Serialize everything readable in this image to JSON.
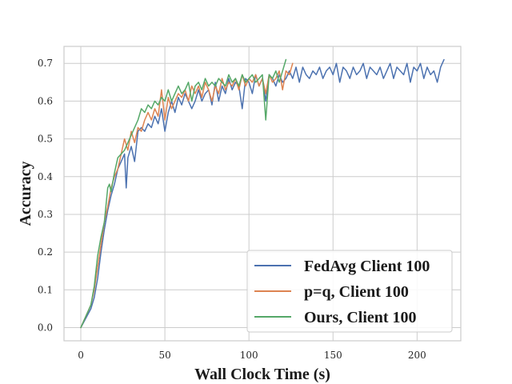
{
  "chart_data": {
    "type": "line",
    "title": "",
    "xlabel": "Wall Clock Time (s)",
    "ylabel": "Accuracy",
    "xlim": [
      -10,
      226
    ],
    "ylim": [
      -0.035,
      0.745
    ],
    "xticks": [
      0,
      50,
      100,
      150,
      200
    ],
    "yticks": [
      0.0,
      0.1,
      0.2,
      0.3,
      0.4,
      0.5,
      0.6,
      0.7
    ],
    "xtick_labels": [
      "0",
      "50",
      "100",
      "150",
      "200"
    ],
    "ytick_labels": [
      "0.0",
      "0.1",
      "0.2",
      "0.3",
      "0.4",
      "0.5",
      "0.6",
      "0.7"
    ],
    "grid": true,
    "legend_position": "lower-right",
    "series": [
      {
        "name": "FedAvg Client 100",
        "color": "#4c72b0",
        "x": [
          0,
          6,
          8,
          10,
          12,
          14,
          16,
          18,
          20,
          22,
          24,
          26,
          27,
          28,
          30,
          32,
          34,
          36,
          38,
          40,
          42,
          44,
          46,
          48,
          50,
          52,
          54,
          56,
          58,
          60,
          62,
          64,
          66,
          68,
          70,
          72,
          74,
          76,
          78,
          80,
          82,
          84,
          86,
          88,
          90,
          92,
          94,
          96,
          98,
          100,
          102,
          104,
          106,
          108,
          110,
          112,
          114,
          116,
          118,
          120,
          122,
          124,
          126,
          128,
          130,
          132,
          134,
          136,
          138,
          140,
          142,
          144,
          146,
          148,
          150,
          152,
          154,
          156,
          158,
          160,
          162,
          164,
          166,
          168,
          170,
          172,
          174,
          176,
          178,
          180,
          182,
          184,
          186,
          188,
          190,
          192,
          194,
          196,
          198,
          200,
          202,
          204,
          206,
          208,
          210,
          212,
          214,
          216
        ],
        "y": [
          0.0,
          0.05,
          0.08,
          0.13,
          0.2,
          0.26,
          0.31,
          0.35,
          0.38,
          0.42,
          0.44,
          0.46,
          0.37,
          0.45,
          0.48,
          0.44,
          0.52,
          0.53,
          0.52,
          0.54,
          0.53,
          0.56,
          0.54,
          0.58,
          0.52,
          0.57,
          0.6,
          0.57,
          0.61,
          0.59,
          0.62,
          0.6,
          0.58,
          0.6,
          0.63,
          0.6,
          0.62,
          0.63,
          0.59,
          0.65,
          0.6,
          0.64,
          0.62,
          0.66,
          0.63,
          0.65,
          0.64,
          0.58,
          0.66,
          0.65,
          0.62,
          0.67,
          0.64,
          0.66,
          0.6,
          0.67,
          0.66,
          0.64,
          0.67,
          0.65,
          0.66,
          0.68,
          0.66,
          0.69,
          0.65,
          0.69,
          0.67,
          0.66,
          0.68,
          0.67,
          0.69,
          0.66,
          0.68,
          0.69,
          0.67,
          0.7,
          0.65,
          0.69,
          0.68,
          0.66,
          0.69,
          0.67,
          0.68,
          0.7,
          0.66,
          0.69,
          0.68,
          0.67,
          0.69,
          0.66,
          0.68,
          0.7,
          0.66,
          0.69,
          0.68,
          0.67,
          0.7,
          0.65,
          0.69,
          0.68,
          0.7,
          0.66,
          0.69,
          0.67,
          0.68,
          0.65,
          0.69,
          0.71
        ]
      },
      {
        "name": "p=q, Client 100",
        "color": "#dd8452",
        "x": [
          0,
          6,
          8,
          10,
          12,
          14,
          16,
          18,
          20,
          22,
          24,
          26,
          28,
          30,
          32,
          34,
          36,
          38,
          40,
          42,
          44,
          46,
          48,
          50,
          52,
          54,
          56,
          58,
          60,
          62,
          64,
          66,
          68,
          70,
          72,
          74,
          76,
          78,
          80,
          82,
          84,
          86,
          88,
          90,
          92,
          94,
          96,
          98,
          100,
          102,
          104,
          106,
          108,
          110,
          112,
          114,
          116,
          118,
          120,
          122,
          124,
          126
        ],
        "y": [
          0.0,
          0.06,
          0.1,
          0.16,
          0.22,
          0.28,
          0.32,
          0.37,
          0.4,
          0.42,
          0.46,
          0.5,
          0.47,
          0.52,
          0.49,
          0.53,
          0.52,
          0.55,
          0.57,
          0.55,
          0.58,
          0.56,
          0.63,
          0.55,
          0.61,
          0.58,
          0.6,
          0.62,
          0.61,
          0.63,
          0.6,
          0.64,
          0.62,
          0.64,
          0.61,
          0.65,
          0.63,
          0.6,
          0.64,
          0.62,
          0.66,
          0.63,
          0.65,
          0.64,
          0.66,
          0.63,
          0.67,
          0.64,
          0.66,
          0.65,
          0.67,
          0.64,
          0.66,
          0.62,
          0.67,
          0.65,
          0.66,
          0.68,
          0.63,
          0.68,
          0.67,
          0.7
        ]
      },
      {
        "name": "Ours, Client 100",
        "color": "#55a868",
        "x": [
          0,
          6,
          8,
          10,
          12,
          14,
          16,
          17,
          18,
          20,
          22,
          24,
          26,
          28,
          30,
          32,
          34,
          36,
          38,
          40,
          42,
          44,
          46,
          48,
          50,
          52,
          54,
          56,
          58,
          60,
          62,
          64,
          66,
          68,
          70,
          72,
          74,
          76,
          78,
          80,
          82,
          84,
          86,
          88,
          90,
          92,
          94,
          96,
          98,
          100,
          102,
          104,
          106,
          108,
          110,
          112,
          114,
          116,
          118,
          120,
          122
        ],
        "y": [
          0.0,
          0.06,
          0.11,
          0.19,
          0.24,
          0.28,
          0.37,
          0.38,
          0.36,
          0.41,
          0.45,
          0.46,
          0.47,
          0.49,
          0.51,
          0.53,
          0.55,
          0.58,
          0.57,
          0.59,
          0.58,
          0.6,
          0.59,
          0.61,
          0.6,
          0.63,
          0.6,
          0.62,
          0.64,
          0.62,
          0.63,
          0.65,
          0.6,
          0.64,
          0.65,
          0.63,
          0.66,
          0.64,
          0.65,
          0.64,
          0.66,
          0.65,
          0.64,
          0.67,
          0.65,
          0.66,
          0.64,
          0.67,
          0.65,
          0.66,
          0.67,
          0.65,
          0.66,
          0.67,
          0.55,
          0.67,
          0.66,
          0.68,
          0.65,
          0.68,
          0.71
        ]
      }
    ]
  }
}
